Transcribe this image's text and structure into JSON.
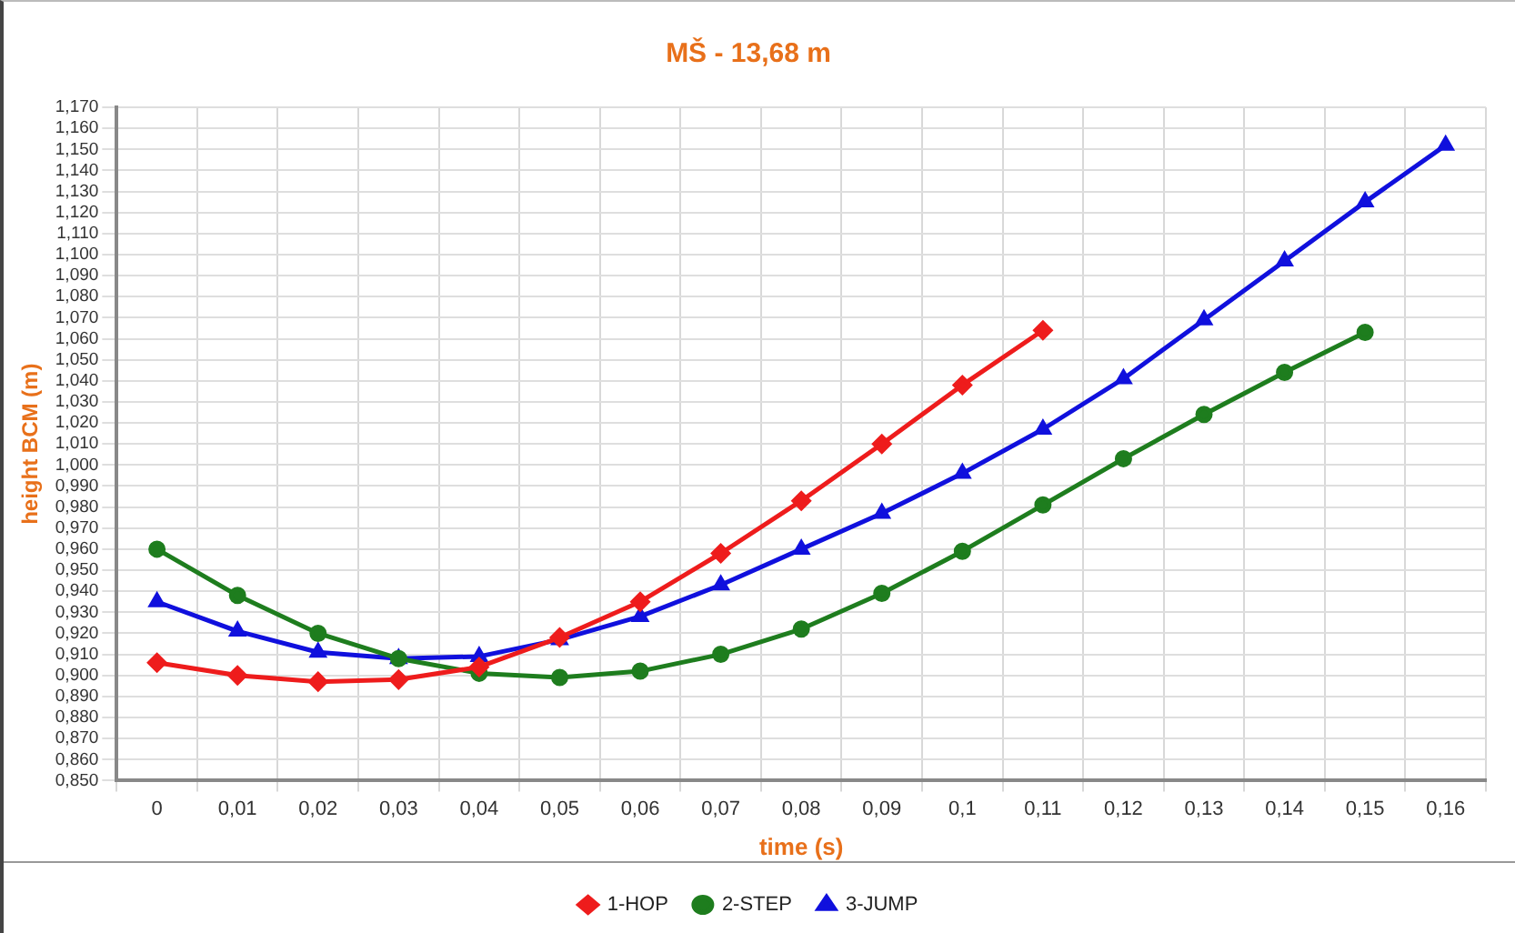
{
  "chart_data": {
    "type": "line",
    "title": "MŠ - 13,68 m",
    "xlabel": "time (s)",
    "ylabel": "height BCM (m)",
    "categories": [
      "0",
      "0,01",
      "0,02",
      "0,03",
      "0,04",
      "0,05",
      "0,06",
      "0,07",
      "0,08",
      "0,09",
      "0,1",
      "0,11",
      "0,12",
      "0,13",
      "0,14",
      "0,15",
      "0,16"
    ],
    "ylim": [
      0.85,
      1.17
    ],
    "yticks": [
      {
        "value": 0.85,
        "label": "0,850"
      },
      {
        "value": 0.86,
        "label": "0,860"
      },
      {
        "value": 0.87,
        "label": "0,870"
      },
      {
        "value": 0.88,
        "label": "0,880"
      },
      {
        "value": 0.89,
        "label": "0,890"
      },
      {
        "value": 0.9,
        "label": "0,900"
      },
      {
        "value": 0.91,
        "label": "0,910"
      },
      {
        "value": 0.92,
        "label": "0,920"
      },
      {
        "value": 0.93,
        "label": "0,930"
      },
      {
        "value": 0.94,
        "label": "0,940"
      },
      {
        "value": 0.95,
        "label": "0,950"
      },
      {
        "value": 0.96,
        "label": "0,960"
      },
      {
        "value": 0.97,
        "label": "0,970"
      },
      {
        "value": 0.98,
        "label": "0,980"
      },
      {
        "value": 0.99,
        "label": "0,990"
      },
      {
        "value": 1.0,
        "label": "1,000"
      },
      {
        "value": 1.01,
        "label": "1,010"
      },
      {
        "value": 1.02,
        "label": "1,020"
      },
      {
        "value": 1.03,
        "label": "1,030"
      },
      {
        "value": 1.04,
        "label": "1,040"
      },
      {
        "value": 1.05,
        "label": "1,050"
      },
      {
        "value": 1.06,
        "label": "1,060"
      },
      {
        "value": 1.07,
        "label": "1,070"
      },
      {
        "value": 1.08,
        "label": "1,080"
      },
      {
        "value": 1.09,
        "label": "1,090"
      },
      {
        "value": 1.1,
        "label": "1,100"
      },
      {
        "value": 1.11,
        "label": "1,110"
      },
      {
        "value": 1.12,
        "label": "1,120"
      },
      {
        "value": 1.13,
        "label": "1,130"
      },
      {
        "value": 1.14,
        "label": "1,140"
      },
      {
        "value": 1.15,
        "label": "1,150"
      },
      {
        "value": 1.16,
        "label": "1,160"
      },
      {
        "value": 1.17,
        "label": "1,170"
      }
    ],
    "grid": true,
    "legend": "bottom",
    "line_style": "solid",
    "series": [
      {
        "name": "1-HOP",
        "color": "#ee1c1c",
        "marker": "diamond",
        "values": [
          0.906,
          0.9,
          0.897,
          0.898,
          0.904,
          0.918,
          0.935,
          0.958,
          0.983,
          1.01,
          1.038,
          1.064,
          null,
          null,
          null,
          null,
          null
        ]
      },
      {
        "name": "2-STEP",
        "color": "#1e7d1e",
        "marker": "circle",
        "values": [
          0.96,
          0.938,
          0.92,
          0.908,
          0.901,
          0.899,
          0.902,
          0.91,
          0.922,
          0.939,
          0.959,
          0.981,
          1.003,
          1.024,
          1.044,
          1.063,
          null
        ]
      },
      {
        "name": "3-JUMP",
        "color": "#1010dd",
        "marker": "triangle",
        "values": [
          0.935,
          0.921,
          0.911,
          0.908,
          0.909,
          0.917,
          0.928,
          0.943,
          0.96,
          0.977,
          0.996,
          1.017,
          1.041,
          1.069,
          1.097,
          1.125,
          1.152
        ]
      }
    ]
  }
}
